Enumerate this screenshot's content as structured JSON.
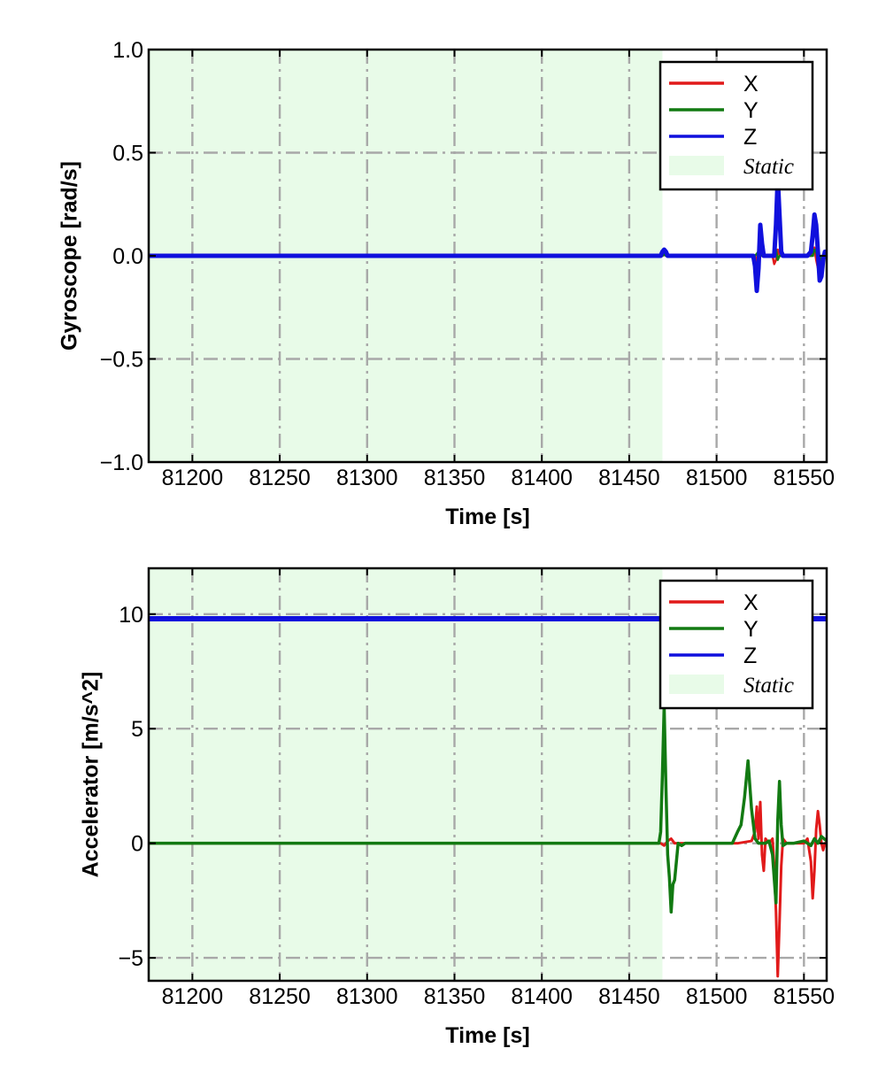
{
  "chart_data": [
    {
      "type": "line",
      "xlabel": "Time [s]",
      "ylabel": "Gyroscope [rad/s]",
      "xlim": [
        81175,
        81563
      ],
      "ylim": [
        -1.0,
        1.0
      ],
      "xticks": [
        81200,
        81250,
        81300,
        81350,
        81400,
        81450,
        81500,
        81550
      ],
      "xtick_labels": [
        "81200",
        "81250",
        "81300",
        "81350",
        "81400",
        "81450",
        "81500",
        "81550"
      ],
      "yticks": [
        -1.0,
        -0.5,
        0.0,
        0.5,
        1.0
      ],
      "ytick_labels": [
        "−1.0",
        "−0.5",
        "0.0",
        "0.5",
        "1.0"
      ],
      "grid": true,
      "legend_position": "top-right",
      "static_region": {
        "label": "Static",
        "x": [
          81175,
          81469
        ],
        "color": "#e8fbe8"
      },
      "series": [
        {
          "name": "X",
          "color": "#e11a1a",
          "width": 2.5,
          "x": [
            81175,
            81469,
            81470,
            81471,
            81522,
            81523,
            81524,
            81525,
            81532,
            81533,
            81534,
            81535,
            81536,
            81554,
            81555,
            81556,
            81557,
            81558,
            81559,
            81560,
            81563
          ],
          "y": [
            0.0,
            0.0,
            0.01,
            0.0,
            0.0,
            -0.03,
            0.02,
            0.0,
            0.0,
            -0.04,
            -0.02,
            0.03,
            0.0,
            0.0,
            0.02,
            0.04,
            -0.02,
            -0.06,
            -0.03,
            0.0,
            0.0
          ]
        },
        {
          "name": "Y",
          "color": "#127a12",
          "width": 2.5,
          "x": [
            81175,
            81469,
            81470,
            81471,
            81522,
            81524,
            81526,
            81533,
            81534,
            81535,
            81536,
            81555,
            81556,
            81557,
            81558,
            81559,
            81560,
            81563
          ],
          "y": [
            0.0,
            0.0,
            0.01,
            0.0,
            0.0,
            0.02,
            0.0,
            0.0,
            0.03,
            -0.02,
            0.0,
            0.0,
            0.03,
            0.02,
            -0.02,
            -0.04,
            0.0,
            0.0
          ]
        },
        {
          "name": "Z",
          "color": "#1010dd",
          "width": 5,
          "x": [
            81175,
            81468,
            81469,
            81470,
            81471,
            81472,
            81521,
            81522,
            81523,
            81524,
            81525,
            81526,
            81527,
            81533,
            81534,
            81535,
            81536,
            81537,
            81538,
            81552,
            81554,
            81555,
            81556,
            81557,
            81558,
            81559,
            81560,
            81561,
            81562,
            81563
          ],
          "y": [
            0.0,
            0.0,
            0.02,
            0.03,
            0.02,
            0.0,
            0.0,
            -0.05,
            -0.17,
            -0.06,
            0.15,
            0.06,
            0.0,
            0.0,
            0.15,
            0.38,
            0.2,
            0.02,
            0.0,
            0.0,
            0.02,
            0.1,
            0.2,
            0.15,
            0.02,
            -0.12,
            -0.1,
            -0.02,
            0.02,
            0.0
          ]
        }
      ]
    },
    {
      "type": "line",
      "xlabel": "Time [s]",
      "ylabel": "Accelerator [m/s^2]",
      "xlim": [
        81175,
        81563
      ],
      "ylim": [
        -6,
        12
      ],
      "xticks": [
        81200,
        81250,
        81300,
        81350,
        81400,
        81450,
        81500,
        81550
      ],
      "xtick_labels": [
        "81200",
        "81250",
        "81300",
        "81350",
        "81400",
        "81450",
        "81500",
        "81550"
      ],
      "yticks": [
        -5,
        0,
        5,
        10
      ],
      "ytick_labels": [
        "−5",
        "0",
        "5",
        "10"
      ],
      "grid": true,
      "legend_position": "top-right",
      "static_region": {
        "label": "Static",
        "x": [
          81175,
          81469
        ],
        "color": "#e8fbe8"
      },
      "series": [
        {
          "name": "X",
          "color": "#e11a1a",
          "width": 3,
          "x": [
            81175,
            81468,
            81470,
            81472,
            81474,
            81476,
            81512,
            81520,
            81522,
            81523,
            81524,
            81525,
            81526,
            81527,
            81528,
            81530,
            81532,
            81533,
            81534,
            81535,
            81536,
            81537,
            81538,
            81540,
            81550,
            81552,
            81554,
            81555,
            81556,
            81557,
            81558,
            81559,
            81560,
            81561,
            81562,
            81563
          ],
          "y": [
            0.0,
            0.0,
            -0.1,
            0.1,
            0.2,
            0.0,
            0.0,
            0.1,
            0.5,
            1.6,
            0.2,
            1.8,
            -0.5,
            -1.2,
            0.2,
            0.0,
            0.2,
            -1.0,
            -3.0,
            -5.8,
            -3.5,
            -1.0,
            0.2,
            0.0,
            0.0,
            0.2,
            -0.8,
            -2.4,
            -1.2,
            0.6,
            1.4,
            0.8,
            0.0,
            -0.3,
            0.0,
            0.0
          ]
        },
        {
          "name": "Y",
          "color": "#127a12",
          "width": 3.5,
          "x": [
            81175,
            81467,
            81468,
            81469,
            81470,
            81471,
            81472,
            81473,
            81474,
            81475,
            81476,
            81478,
            81480,
            81482,
            81509,
            81512,
            81514,
            81516,
            81518,
            81520,
            81522,
            81524,
            81528,
            81530,
            81532,
            81534,
            81535,
            81536,
            81537,
            81538,
            81540,
            81544,
            81550,
            81554,
            81556,
            81558,
            81560,
            81563
          ],
          "y": [
            0.0,
            0.0,
            0.5,
            3.0,
            6.0,
            2.5,
            -0.5,
            -1.5,
            -3.0,
            -1.8,
            -1.6,
            0.0,
            -0.1,
            0.0,
            0.0,
            0.5,
            0.8,
            2.0,
            3.6,
            1.5,
            0.2,
            0.0,
            0.0,
            0.1,
            -0.5,
            -2.6,
            1.0,
            2.7,
            0.8,
            -0.1,
            0.0,
            0.0,
            0.1,
            -0.1,
            0.2,
            0.0,
            0.3,
            0.1
          ]
        },
        {
          "name": "Z",
          "color": "#1010dd",
          "width": 6,
          "x": [
            81175,
            81563
          ],
          "y": [
            9.8,
            9.8
          ]
        }
      ]
    }
  ]
}
